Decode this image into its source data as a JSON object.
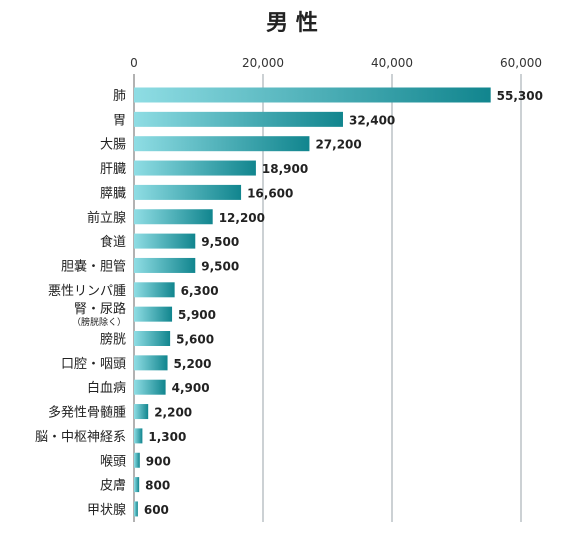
{
  "chart_data": {
    "type": "bar",
    "orientation": "horizontal",
    "title": "男 性",
    "xlim": [
      0,
      60000
    ],
    "x_ticks": [
      "0",
      "20,000",
      "40,000",
      "60,000"
    ],
    "x_tick_values": [
      0,
      20000,
      40000,
      60000
    ],
    "grid": "vertical",
    "categories": [
      {
        "label": "肺",
        "sub": ""
      },
      {
        "label": "胃",
        "sub": ""
      },
      {
        "label": "大腸",
        "sub": ""
      },
      {
        "label": "肝臓",
        "sub": ""
      },
      {
        "label": "膵臓",
        "sub": ""
      },
      {
        "label": "前立腺",
        "sub": ""
      },
      {
        "label": "食道",
        "sub": ""
      },
      {
        "label": "胆嚢・胆管",
        "sub": ""
      },
      {
        "label": "悪性リンパ腫",
        "sub": ""
      },
      {
        "label": "腎・尿路",
        "sub": "（膀胱除く）"
      },
      {
        "label": "膀胱",
        "sub": ""
      },
      {
        "label": "口腔・咽頭",
        "sub": ""
      },
      {
        "label": "白血病",
        "sub": ""
      },
      {
        "label": "多発性骨髄腫",
        "sub": ""
      },
      {
        "label": "脳・中枢神経系",
        "sub": ""
      },
      {
        "label": "喉頭",
        "sub": ""
      },
      {
        "label": "皮膚",
        "sub": ""
      },
      {
        "label": "甲状腺",
        "sub": ""
      }
    ],
    "values": [
      55300,
      32400,
      27200,
      18900,
      16600,
      12200,
      9500,
      9500,
      6300,
      5900,
      5600,
      5200,
      4900,
      2200,
      1300,
      900,
      800,
      600
    ],
    "value_labels": [
      "55,300",
      "32,400",
      "27,200",
      "18,900",
      "16,600",
      "12,200",
      "9,500",
      "9,500",
      "6,300",
      "5,900",
      "5,600",
      "5,200",
      "4,900",
      "2,200",
      "1,300",
      "900",
      "800",
      "600"
    ],
    "colors": {
      "bar_start": "#8fdde4",
      "bar_end": "#11858e",
      "grid": "#9aa3a8",
      "axis": "#666666"
    }
  }
}
